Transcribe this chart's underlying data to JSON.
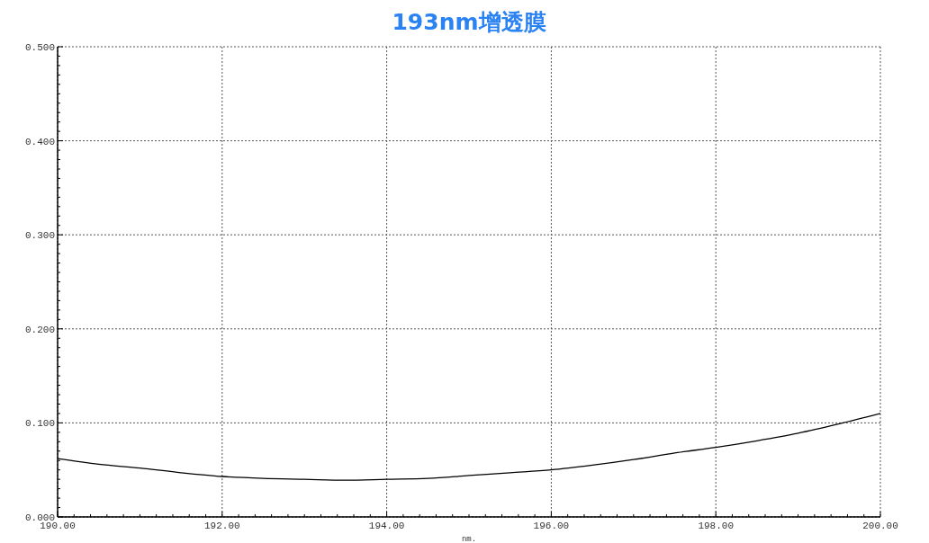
{
  "chart_data": {
    "type": "line",
    "title": "193nm增透膜",
    "xlabel": "nm.",
    "x": [
      190,
      190.5,
      191,
      191.5,
      192,
      192.5,
      193,
      193.5,
      194,
      194.5,
      195,
      195.5,
      196,
      196.5,
      197,
      197.5,
      198,
      198.5,
      199,
      199.5,
      200
    ],
    "values": [
      0.062,
      0.056,
      0.052,
      0.047,
      0.043,
      0.041,
      0.04,
      0.039,
      0.04,
      0.041,
      0.044,
      0.047,
      0.05,
      0.055,
      0.061,
      0.068,
      0.074,
      0.081,
      0.089,
      0.099,
      0.11
    ],
    "color": "#000000",
    "xlim": [
      190,
      200
    ],
    "xticks": [
      {
        "value": 190,
        "label": "190.00"
      },
      {
        "value": 190.2,
        "label": null
      },
      {
        "value": 190.4,
        "label": null
      },
      {
        "value": 190.6,
        "label": null
      },
      {
        "value": 190.8,
        "label": null
      },
      {
        "value": 191,
        "label": null
      },
      {
        "value": 191.2,
        "label": null
      },
      {
        "value": 191.4,
        "label": null
      },
      {
        "value": 191.6,
        "label": null
      },
      {
        "value": 191.8,
        "label": null
      },
      {
        "value": 192,
        "label": "192.00"
      },
      {
        "value": 192.2,
        "label": null
      },
      {
        "value": 192.4,
        "label": null
      },
      {
        "value": 192.6,
        "label": null
      },
      {
        "value": 192.8,
        "label": null
      },
      {
        "value": 193,
        "label": null
      },
      {
        "value": 193.2,
        "label": null
      },
      {
        "value": 193.4,
        "label": null
      },
      {
        "value": 193.6,
        "label": null
      },
      {
        "value": 193.8,
        "label": null
      },
      {
        "value": 194,
        "label": "194.00"
      },
      {
        "value": 194.2,
        "label": null
      },
      {
        "value": 194.4,
        "label": null
      },
      {
        "value": 194.6,
        "label": null
      },
      {
        "value": 194.8,
        "label": null
      },
      {
        "value": 195,
        "label": null
      },
      {
        "value": 195.2,
        "label": null
      },
      {
        "value": 195.4,
        "label": null
      },
      {
        "value": 195.6,
        "label": null
      },
      {
        "value": 195.8,
        "label": null
      },
      {
        "value": 196,
        "label": "196.00"
      },
      {
        "value": 196.2,
        "label": null
      },
      {
        "value": 196.4,
        "label": null
      },
      {
        "value": 196.6,
        "label": null
      },
      {
        "value": 196.8,
        "label": null
      },
      {
        "value": 197,
        "label": null
      },
      {
        "value": 197.2,
        "label": null
      },
      {
        "value": 197.4,
        "label": null
      },
      {
        "value": 197.6,
        "label": null
      },
      {
        "value": 197.8,
        "label": null
      },
      {
        "value": 198,
        "label": "198.00"
      },
      {
        "value": 198.2,
        "label": null
      },
      {
        "value": 198.4,
        "label": null
      },
      {
        "value": 198.6,
        "label": null
      },
      {
        "value": 198.8,
        "label": null
      },
      {
        "value": 199,
        "label": null
      },
      {
        "value": 199.2,
        "label": null
      },
      {
        "value": 199.4,
        "label": null
      },
      {
        "value": 199.6,
        "label": null
      },
      {
        "value": 199.8,
        "label": null
      },
      {
        "value": 200,
        "label": "200.00"
      }
    ],
    "ylim": [
      0,
      0.5
    ],
    "yticks": [
      {
        "value": 0,
        "label": "0.000"
      },
      {
        "value": 0.01,
        "label": null
      },
      {
        "value": 0.02,
        "label": null
      },
      {
        "value": 0.03,
        "label": null
      },
      {
        "value": 0.04,
        "label": null
      },
      {
        "value": 0.05,
        "label": null
      },
      {
        "value": 0.06,
        "label": null
      },
      {
        "value": 0.07,
        "label": null
      },
      {
        "value": 0.08,
        "label": null
      },
      {
        "value": 0.09,
        "label": null
      },
      {
        "value": 0.1,
        "label": "0.100"
      },
      {
        "value": 0.11,
        "label": null
      },
      {
        "value": 0.12,
        "label": null
      },
      {
        "value": 0.13,
        "label": null
      },
      {
        "value": 0.14,
        "label": null
      },
      {
        "value": 0.15,
        "label": null
      },
      {
        "value": 0.16,
        "label": null
      },
      {
        "value": 0.17,
        "label": null
      },
      {
        "value": 0.18,
        "label": null
      },
      {
        "value": 0.19,
        "label": null
      },
      {
        "value": 0.2,
        "label": "0.200"
      },
      {
        "value": 0.21,
        "label": null
      },
      {
        "value": 0.22,
        "label": null
      },
      {
        "value": 0.23,
        "label": null
      },
      {
        "value": 0.24,
        "label": null
      },
      {
        "value": 0.25,
        "label": null
      },
      {
        "value": 0.26,
        "label": null
      },
      {
        "value": 0.27,
        "label": null
      },
      {
        "value": 0.28,
        "label": null
      },
      {
        "value": 0.29,
        "label": null
      },
      {
        "value": 0.3,
        "label": "0.300"
      },
      {
        "value": 0.31,
        "label": null
      },
      {
        "value": 0.32,
        "label": null
      },
      {
        "value": 0.33,
        "label": null
      },
      {
        "value": 0.34,
        "label": null
      },
      {
        "value": 0.35,
        "label": null
      },
      {
        "value": 0.36,
        "label": null
      },
      {
        "value": 0.37,
        "label": null
      },
      {
        "value": 0.38,
        "label": null
      },
      {
        "value": 0.39,
        "label": null
      },
      {
        "value": 0.4,
        "label": "0.400"
      },
      {
        "value": 0.41,
        "label": null
      },
      {
        "value": 0.42,
        "label": null
      },
      {
        "value": 0.43,
        "label": null
      },
      {
        "value": 0.44,
        "label": null
      },
      {
        "value": 0.45,
        "label": null
      },
      {
        "value": 0.46,
        "label": null
      },
      {
        "value": 0.47,
        "label": null
      },
      {
        "value": 0.48,
        "label": null
      },
      {
        "value": 0.49,
        "label": null
      },
      {
        "value": 0.5,
        "label": "0.500"
      }
    ],
    "grid": true
  }
}
